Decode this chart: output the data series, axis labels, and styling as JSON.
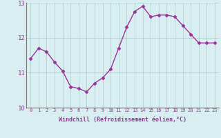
{
  "x": [
    0,
    1,
    2,
    3,
    4,
    5,
    6,
    7,
    8,
    9,
    10,
    11,
    12,
    13,
    14,
    15,
    16,
    17,
    18,
    19,
    20,
    21,
    22,
    23
  ],
  "y": [
    11.4,
    11.7,
    11.6,
    11.3,
    11.05,
    10.6,
    10.55,
    10.45,
    10.7,
    10.85,
    11.1,
    11.7,
    12.3,
    12.75,
    12.9,
    12.6,
    12.65,
    12.65,
    12.6,
    12.35,
    12.1,
    11.85,
    11.85,
    11.85
  ],
  "line_color": "#993399",
  "marker": "D",
  "marker_size": 2.5,
  "bg_color": "#d8eef0",
  "grid_color": "#aacccc",
  "xlabel": "Windchill (Refroidissement éolien,°C)",
  "xlabel_color": "#993399",
  "tick_color": "#993399",
  "spine_color": "#777777",
  "ylim": [
    10,
    13
  ],
  "xlim_min": -0.5,
  "xlim_max": 23.5,
  "yticks": [
    10,
    11,
    12,
    13
  ],
  "xticks": [
    0,
    1,
    2,
    3,
    4,
    5,
    6,
    7,
    8,
    9,
    10,
    11,
    12,
    13,
    14,
    15,
    16,
    17,
    18,
    19,
    20,
    21,
    22,
    23
  ],
  "xtick_fontsize": 5.0,
  "ytick_fontsize": 6.5,
  "xlabel_fontsize": 6.0,
  "linewidth": 1.0
}
